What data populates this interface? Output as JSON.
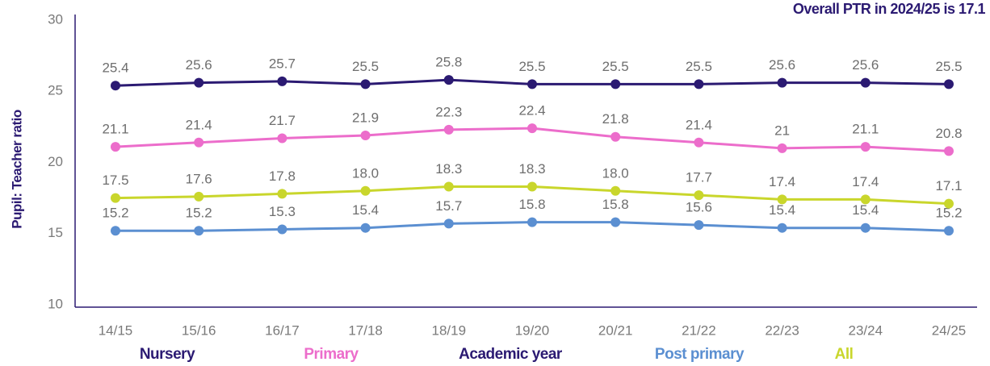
{
  "chart_data": {
    "type": "line",
    "annotation": "Overall PTR in 2024/25 is 17.1",
    "y_label": "Pupil: Teacher ratio",
    "x_label": "Academic year",
    "categories": [
      "14/15",
      "15/16",
      "16/17",
      "17/18",
      "18/19",
      "19/20",
      "20/21",
      "21/22",
      "22/23",
      "23/24",
      "24/25"
    ],
    "series": [
      {
        "name": "Nursery",
        "color": "#2b1a72",
        "values": [
          25.4,
          25.6,
          25.7,
          25.5,
          25.8,
          25.5,
          25.5,
          25.5,
          25.6,
          25.6,
          25.5
        ]
      },
      {
        "name": "Primary",
        "color": "#ec6dcb",
        "values": [
          21.1,
          21.4,
          21.7,
          21.9,
          22.3,
          22.4,
          21.8,
          21.4,
          21,
          21.1,
          20.8
        ]
      },
      {
        "name": "Post primary",
        "color": "#5b8fd1",
        "values": [
          15.2,
          15.2,
          15.3,
          15.4,
          15.7,
          15.8,
          15.8,
          15.6,
          15.4,
          15.4,
          15.2
        ]
      },
      {
        "name": "All",
        "color": "#c9d62c",
        "values": [
          17.5,
          17.6,
          17.8,
          18.0,
          18.3,
          18.3,
          18.0,
          17.7,
          17.4,
          17.4,
          17.1
        ],
        "value_labels": [
          "17.5",
          "17.6",
          "17.8",
          "18.0",
          "18.3",
          "18.3",
          "18.0",
          "17.7",
          "17.4",
          "17.4",
          "17.1"
        ]
      }
    ],
    "ylim": [
      10,
      30
    ],
    "yticks": [
      10,
      15,
      20,
      25,
      30
    ],
    "grid": false,
    "axis_color": "#2b1a72"
  }
}
